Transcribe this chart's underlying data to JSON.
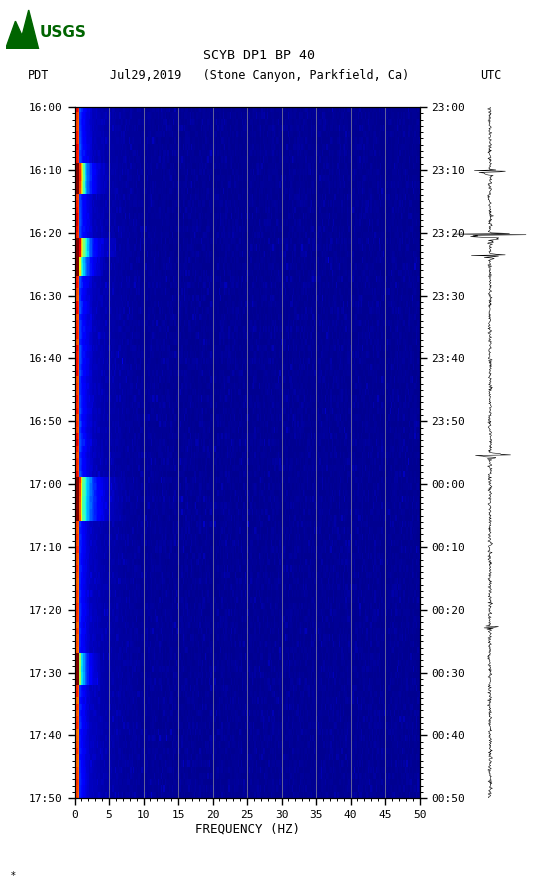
{
  "title_line1": "SCYB DP1 BP 40",
  "title_line2_pdt": "PDT   Jul29,2019   (Stone Canyon, Parkfield, Ca)          UTC",
  "xlabel": "FREQUENCY (HZ)",
  "freq_min": 0,
  "freq_max": 50,
  "pdt_labels": [
    "16:00",
    "16:10",
    "16:20",
    "16:30",
    "16:40",
    "16:50",
    "17:00",
    "17:10",
    "17:20",
    "17:30",
    "17:40",
    "17:50"
  ],
  "utc_labels": [
    "23:00",
    "23:10",
    "23:20",
    "23:30",
    "23:40",
    "23:50",
    "00:00",
    "00:10",
    "00:20",
    "00:30",
    "00:40",
    "00:50"
  ],
  "freq_ticks": [
    0,
    5,
    10,
    15,
    20,
    25,
    30,
    35,
    40,
    45,
    50
  ],
  "grid_freqs": [
    5,
    10,
    15,
    20,
    25,
    30,
    35,
    40,
    45
  ],
  "background_color": "#ffffff",
  "colormap": "jet",
  "n_time_bins": 110,
  "n_freq_bins": 250,
  "usgs_color": "#006400",
  "grid_color": "#888899",
  "tick_color": "#000000",
  "label_fontsize": 8,
  "title_fontsize": 9
}
